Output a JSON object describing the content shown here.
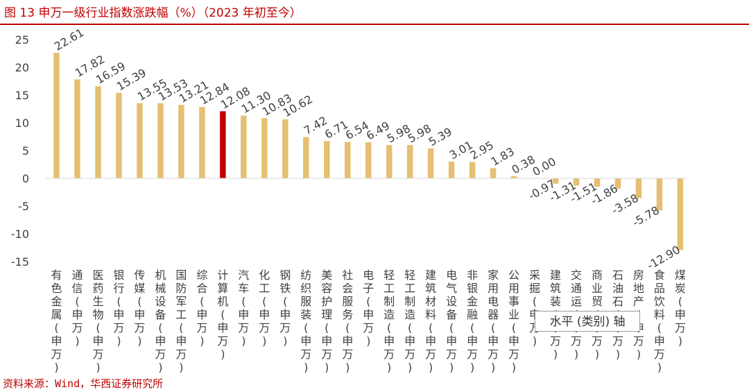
{
  "figure": {
    "title": "图 13   申万一级行业指数涨跌幅（%）（2023 年初至今）",
    "source": "资料来源：Wind，华西证券研究所",
    "tooltip": "水平 (类别) 轴"
  },
  "colors": {
    "bar": "#e6bf73",
    "highlight": "#c00000",
    "accent": "#c00000",
    "text": "#404040",
    "axis": "#d9d9d9"
  },
  "chart_data": {
    "type": "bar",
    "categories": [
      "有色金属(申万)",
      "通信(申万)",
      "医药生物(申万)",
      "银行(申万)",
      "传媒(申万)",
      "机械设备(申万)",
      "国防军工(申万)",
      "综合(申万)",
      "计算机(申万)",
      "汽车(申万)",
      "化工(申万)",
      "钢铁(申万)",
      "纺织服装(申万)",
      "美容护理(申万)",
      "社会服务(申万)",
      "电子(申万)",
      "轻工制造(申万)",
      "轻工制造(申万)",
      "建筑材料(申万)",
      "电气设备(申万)",
      "非银金融(申万)",
      "家用电器(申万)",
      "公用事业(申万)",
      "采掘(申万)",
      "建筑装(申万)",
      "交通运(申万)",
      "商业贸(申万)",
      "石油石(申万)",
      "房地产(申万)",
      "食品饮料(申万)",
      "煤炭(申万)"
    ],
    "values": [
      22.61,
      17.82,
      16.59,
      15.39,
      13.55,
      13.53,
      13.21,
      12.84,
      12.08,
      11.3,
      10.83,
      10.62,
      7.42,
      6.71,
      6.54,
      6.49,
      5.98,
      5.98,
      5.39,
      3.01,
      2.95,
      1.83,
      0.38,
      0.0,
      -0.97,
      -1.31,
      -1.51,
      -1.86,
      -3.58,
      -5.78,
      -12.9
    ],
    "value_labels": [
      "22.61",
      "17.82",
      "16.59",
      "15.39",
      "13.55",
      "13.53",
      "13.21",
      "12.84",
      "12.08",
      "11.30",
      "10.83",
      "10.62",
      "7.42",
      "6.71",
      "6.54",
      "6.49",
      "5.98",
      "5.98",
      "5.39",
      "3.01",
      "2.95",
      "1.83",
      "0.38",
      "0.00",
      "-0.97",
      "-1.31",
      "-1.51",
      "-1.86",
      "-3.58",
      "-5.78",
      "-12.90"
    ],
    "highlight_index": 8,
    "ylim": [
      -15,
      25
    ],
    "yticks": [
      "-15",
      "-10",
      "-5",
      "0",
      "5",
      "10",
      "15",
      "20",
      "25"
    ],
    "grid": false,
    "legend": "none"
  }
}
